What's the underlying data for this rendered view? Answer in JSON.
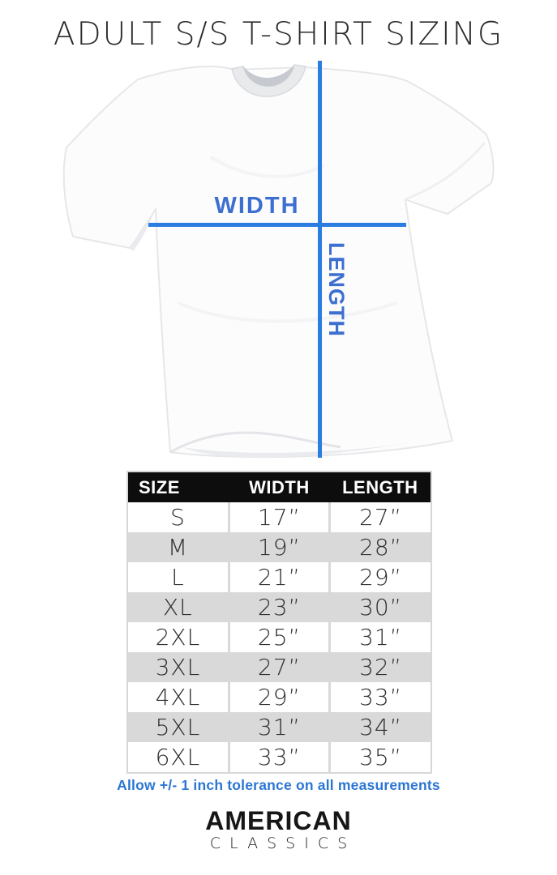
{
  "title": "ADULT S/S T-SHIRT SIZING",
  "diagram": {
    "width_label": "WIDTH",
    "length_label": "LENGTH",
    "line_color": "#2b7de2",
    "label_color": "#3d6fd0"
  },
  "chart_data": {
    "type": "table",
    "title": "ADULT S/S T-SHIRT SIZING",
    "columns": [
      "SIZE",
      "WIDTH",
      "LENGTH"
    ],
    "rows": [
      [
        "S",
        "17”",
        "27”"
      ],
      [
        "M",
        "19”",
        "28”"
      ],
      [
        "L",
        "21”",
        "29”"
      ],
      [
        "XL",
        "23”",
        "30”"
      ],
      [
        "2XL",
        "25”",
        "31”"
      ],
      [
        "3XL",
        "27”",
        "32”"
      ],
      [
        "4XL",
        "29”",
        "33”"
      ],
      [
        "5XL",
        "31”",
        "34”"
      ],
      [
        "6XL",
        "33”",
        "35”"
      ]
    ],
    "header_bg": "#0d0d0d",
    "alt_row_bg": "#d9d9d9"
  },
  "note": "Allow +/- 1 inch tolerance on all measurements",
  "brand": {
    "name_top": "AMERICAN",
    "name_bottom": "CLASSICS"
  }
}
